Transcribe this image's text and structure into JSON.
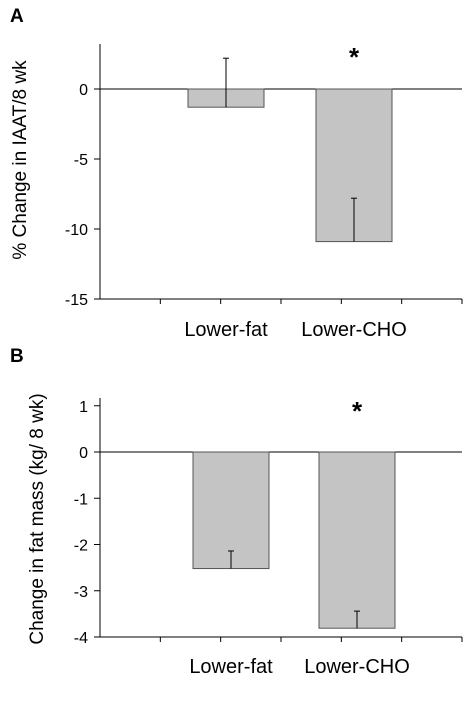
{
  "chart_data": [
    {
      "type": "bar",
      "panel": "A",
      "categories": [
        "Lower-fat",
        "Lower-CHO"
      ],
      "values": [
        -1.3,
        -10.9
      ],
      "error_bars": [
        3.5,
        3.1
      ],
      "error_direction": [
        "up",
        "up"
      ],
      "significance": [
        "",
        "*"
      ],
      "ylabel": "% Change in IAAT/8 wk",
      "ylim": [
        -15,
        3
      ],
      "yticks": [
        -15,
        -10,
        -5,
        0
      ],
      "ytick_labels": [
        "-15",
        "-10",
        "-5",
        "0"
      ],
      "bar_color": "#c4c4c4"
    },
    {
      "type": "bar",
      "panel": "B",
      "categories": [
        "Lower-fat",
        "Lower-CHO"
      ],
      "values": [
        -2.52,
        -3.81
      ],
      "error_bars": [
        0.38,
        0.37
      ],
      "error_direction": [
        "up",
        "up"
      ],
      "significance": [
        "",
        "*"
      ],
      "ylabel": "Change in fat mass (kg/ 8 wk)",
      "ylim": [
        -4,
        1
      ],
      "yticks": [
        -4,
        -3,
        -2,
        -1,
        0,
        1
      ],
      "ytick_labels": [
        "-4",
        "-3",
        "-2",
        "-1",
        "0",
        "1"
      ],
      "bar_color": "#c4c4c4"
    }
  ]
}
